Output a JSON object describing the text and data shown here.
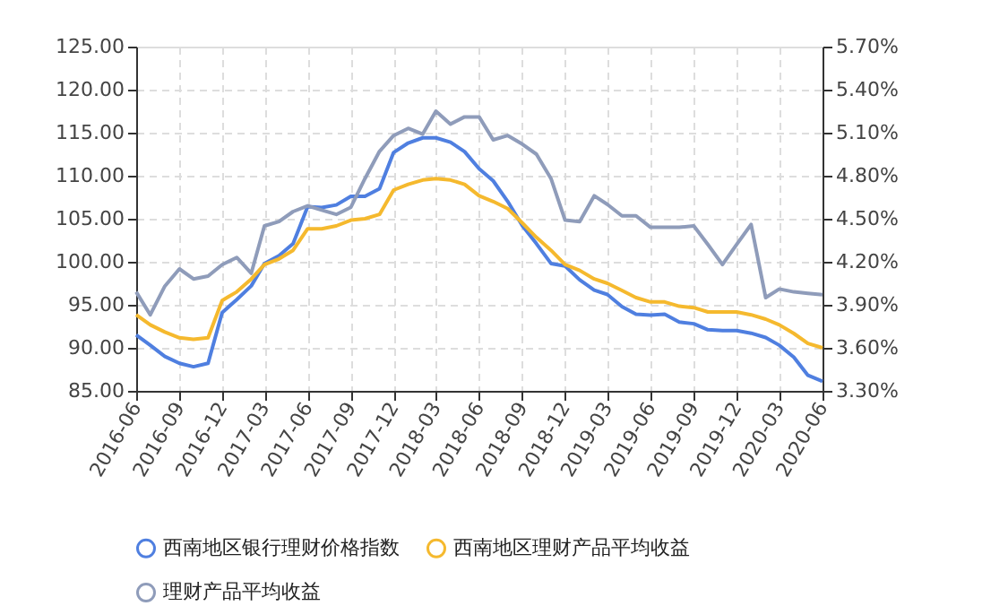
{
  "chart_data": {
    "type": "line",
    "x": [
      "2016-06",
      "2016-07",
      "2016-08",
      "2016-09",
      "2016-10",
      "2016-11",
      "2016-12",
      "2017-01",
      "2017-02",
      "2017-03",
      "2017-04",
      "2017-05",
      "2017-06",
      "2017-07",
      "2017-08",
      "2017-09",
      "2017-10",
      "2017-11",
      "2017-12",
      "2018-01",
      "2018-02",
      "2018-03",
      "2018-04",
      "2018-05",
      "2018-06",
      "2018-07",
      "2018-08",
      "2018-09",
      "2018-10",
      "2018-11",
      "2018-12",
      "2019-01",
      "2019-02",
      "2019-03",
      "2019-04",
      "2019-05",
      "2019-06",
      "2019-07",
      "2019-08",
      "2019-09",
      "2019-10",
      "2019-11",
      "2019-12",
      "2020-01",
      "2020-02",
      "2020-03",
      "2020-04",
      "2020-05",
      "2020-06"
    ],
    "series": [
      {
        "name": "西南地区银行理财价格指数",
        "color": "#4f7fe0",
        "axis": "y",
        "values": [
          91.5,
          90.3,
          89.0,
          88.2,
          87.8,
          88.2,
          94.1,
          95.6,
          97.2,
          99.8,
          100.7,
          102.1,
          106.4,
          106.3,
          106.6,
          107.6,
          107.6,
          108.5,
          112.7,
          113.8,
          114.4,
          114.4,
          113.9,
          112.8,
          110.8,
          109.4,
          107.0,
          104.2,
          102.1,
          99.8,
          99.5,
          97.9,
          96.7,
          96.2,
          94.8,
          93.9,
          93.8,
          93.9,
          93.0,
          92.8,
          92.1,
          92.0,
          92.0,
          91.7,
          91.2,
          90.3,
          88.9,
          86.8,
          86.1
        ]
      },
      {
        "name": "西南地区理财产品平均收益",
        "color": "#f5b92e",
        "axis": "y2",
        "values": [
          3.83,
          3.76,
          3.71,
          3.67,
          3.66,
          3.67,
          3.93,
          3.99,
          4.08,
          4.18,
          4.22,
          4.28,
          4.43,
          4.43,
          4.45,
          4.49,
          4.5,
          4.53,
          4.7,
          4.74,
          4.77,
          4.78,
          4.77,
          4.74,
          4.66,
          4.62,
          4.57,
          4.47,
          4.37,
          4.28,
          4.18,
          4.14,
          4.08,
          4.05,
          4.0,
          3.95,
          3.92,
          3.92,
          3.89,
          3.88,
          3.85,
          3.85,
          3.85,
          3.83,
          3.8,
          3.76,
          3.7,
          3.63,
          3.6
        ]
      },
      {
        "name": "理财产品平均收益",
        "color": "#8f9cba",
        "axis": "y2",
        "values": [
          3.99,
          3.83,
          4.03,
          4.15,
          4.08,
          4.1,
          4.18,
          4.23,
          4.12,
          4.45,
          4.48,
          4.55,
          4.59,
          4.56,
          4.53,
          4.58,
          4.78,
          4.97,
          5.08,
          5.13,
          5.09,
          5.25,
          5.16,
          5.21,
          5.21,
          5.05,
          5.08,
          5.02,
          4.95,
          4.78,
          4.49,
          4.48,
          4.66,
          4.6,
          4.52,
          4.52,
          4.44,
          4.44,
          4.44,
          4.45,
          4.32,
          4.18,
          4.32,
          4.46,
          3.95,
          4.01,
          3.99,
          3.98,
          3.97
        ]
      }
    ],
    "xlim": [
      "2016-06",
      "2020-06"
    ],
    "xticks": [
      "2016-06",
      "2016-09",
      "2016-12",
      "2017-03",
      "2017-06",
      "2017-09",
      "2017-12",
      "2018-03",
      "2018-06",
      "2018-09",
      "2018-12",
      "2019-03",
      "2019-06",
      "2019-09",
      "2019-12",
      "2020-03",
      "2020-06"
    ],
    "ylim": [
      85,
      125
    ],
    "yticks": [
      {
        "value": 85,
        "label": "85.00"
      },
      {
        "value": 90,
        "label": "90.00"
      },
      {
        "value": 95,
        "label": "95.00"
      },
      {
        "value": 100,
        "label": "100.00"
      },
      {
        "value": 105,
        "label": "105.00"
      },
      {
        "value": 110,
        "label": "110.00"
      },
      {
        "value": 115,
        "label": "115.00"
      },
      {
        "value": 120,
        "label": "120.00"
      },
      {
        "value": 125,
        "label": "125.00"
      }
    ],
    "y2lim": [
      3.3,
      5.7
    ],
    "y2ticks": [
      {
        "value": 3.3,
        "label": "3.30%"
      },
      {
        "value": 3.6,
        "label": "3.60%"
      },
      {
        "value": 3.9,
        "label": "3.90%"
      },
      {
        "value": 4.2,
        "label": "4.20%"
      },
      {
        "value": 4.5,
        "label": "4.50%"
      },
      {
        "value": 4.8,
        "label": "4.80%"
      },
      {
        "value": 5.1,
        "label": "5.10%"
      },
      {
        "value": 5.4,
        "label": "5.40%"
      },
      {
        "value": 5.7,
        "label": "5.70%"
      }
    ],
    "grid": true,
    "legend": "bottom",
    "marker": "none",
    "line_style": "solid"
  }
}
